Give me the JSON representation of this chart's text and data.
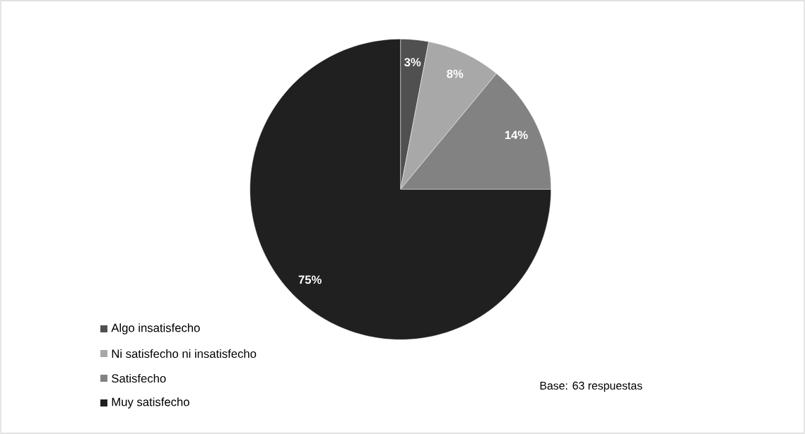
{
  "chart_data": {
    "type": "pie",
    "categories": [
      "Algo insatisfecho",
      "Ni satisfecho ni insatisfecho",
      "Satisfecho",
      "Muy satisfecho"
    ],
    "values": [
      3,
      8,
      14,
      75
    ],
    "colors": [
      "#505050",
      "#a8a8a8",
      "#828282",
      "#202020"
    ],
    "value_labels": [
      "3%",
      "8%",
      "14%",
      "75%"
    ],
    "legend": "bottom left",
    "annotations": [
      "Base: 63 respuestas"
    ]
  }
}
